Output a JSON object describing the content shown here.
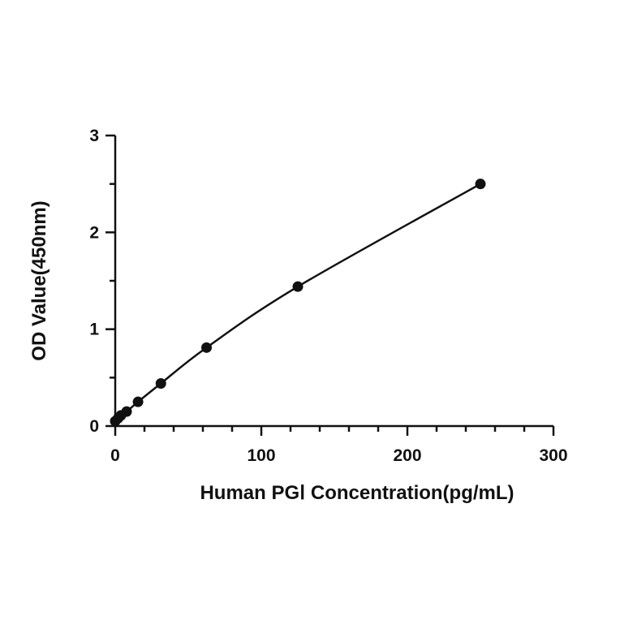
{
  "chart_data": {
    "type": "scatter",
    "xlabel": "Human PGⅠ Concentration(pg/mL)",
    "ylabel": "OD Value(450nm)",
    "xlim": [
      0,
      300
    ],
    "ylim": [
      0,
      3
    ],
    "x_ticks": [
      0,
      100,
      200,
      300
    ],
    "y_ticks": [
      0,
      1,
      2,
      3
    ],
    "x_tick_labels": [
      "0",
      "100",
      "200",
      "300"
    ],
    "y_tick_labels": [
      "0",
      "1",
      "2",
      "3"
    ],
    "x_minor_step": 20,
    "y_minor_step": 0.5,
    "grid": false,
    "fit_curve": true,
    "colors": {
      "marks": "#111111",
      "axis": "#111111"
    },
    "series": [
      {
        "x": [
          0,
          1.95,
          3.9,
          7.8,
          15.6,
          31.25,
          62.5,
          125,
          250
        ],
        "y": [
          0.05,
          0.08,
          0.11,
          0.15,
          0.25,
          0.44,
          0.81,
          1.44,
          2.5
        ]
      }
    ]
  }
}
